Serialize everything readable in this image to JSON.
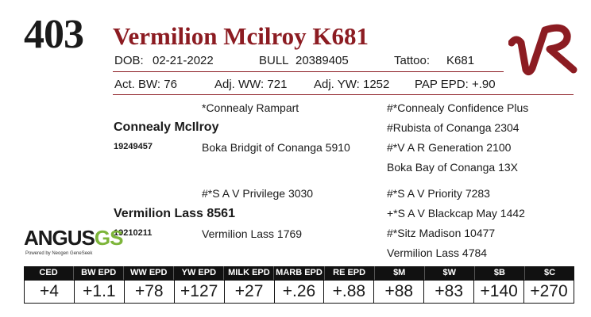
{
  "lot_number": "403",
  "animal_name": "Vermilion Mcilroy K681",
  "brand_logo_text": "VR",
  "info_row1": {
    "dob_label": "DOB:",
    "dob_value": "02-21-2022",
    "sex_label": "BULL",
    "registration": "20389405",
    "tattoo_label": "Tattoo:",
    "tattoo_value": "K681"
  },
  "info_row2": {
    "act_bw": "Act. BW: 76",
    "adj_ww": "Adj. WW: 721",
    "adj_yw": "Adj. YW: 1252",
    "pap_epd": "PAP EPD: +.90"
  },
  "pedigree": {
    "sire": {
      "name": "Connealy McIlroy",
      "reg": "19249457"
    },
    "sire_sire": "*Connealy Rampart",
    "sire_dam": "Boka Bridgit of Conanga 5910",
    "sire_sire_sire": "#*Connealy Confidence Plus",
    "sire_sire_dam": "#Rubista of Conanga 2304",
    "sire_dam_sire": "#*V A R Generation 2100",
    "sire_dam_dam": "Boka Bay of Conanga 13X",
    "dam": {
      "name": "Vermilion Lass 8561",
      "reg": "19210211"
    },
    "dam_sire": "#*S A V Privilege 3030",
    "dam_dam": "Vermilion Lass 1769",
    "dam_sire_sire": "#*S A V Priority 7283",
    "dam_sire_dam": "+*S A V Blackcap May 1442",
    "dam_dam_sire": "#*Sitz Madison 10477",
    "dam_dam_dam": "Vermilion Lass 4784"
  },
  "logo": {
    "angus": "ANGUS",
    "gs": "GS",
    "powered": "Powered by Neogen GeneSeek"
  },
  "epd": {
    "headers": [
      "CED",
      "BW EPD",
      "WW EPD",
      "YW EPD",
      "MILK EPD",
      "MARB EPD",
      "RE EPD",
      "$M",
      "$W",
      "$B",
      "$C"
    ],
    "values": [
      "+4",
      "+1.1",
      "+78",
      "+127",
      "+27",
      "+.26",
      "+.88",
      "+88",
      "+83",
      "+140",
      "+270"
    ]
  },
  "colors": {
    "accent": "#8c1c22",
    "header_bg": "#111111",
    "gs_green": "#7db53a"
  }
}
